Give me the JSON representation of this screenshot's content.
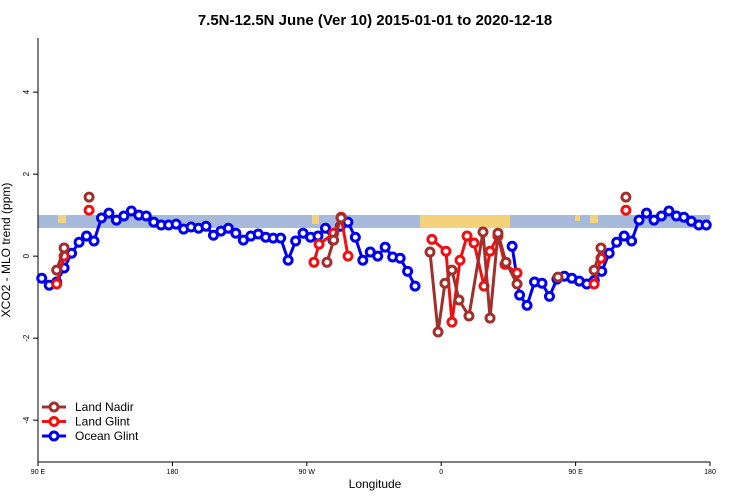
{
  "chart_data": {
    "type": "line",
    "title": "7.5N-12.5N June (Ver 10)   2015-01-01 to 2020-12-18",
    "xlabel": "Longitude",
    "ylabel": "XCO2 - MLO trend (ppm)",
    "xlim": [
      90,
      540
    ],
    "xticks": [
      {
        "value": 90,
        "label": "90 E"
      },
      {
        "value": 180,
        "label": "180"
      },
      {
        "value": 270,
        "label": "90 W"
      },
      {
        "value": 360,
        "label": "0"
      },
      {
        "value": 450,
        "label": "90 E"
      },
      {
        "value": 540,
        "label": "180"
      }
    ],
    "ylim": [
      -5.02,
      5.32
    ],
    "yticks": [
      -4,
      -2,
      0,
      2,
      4
    ],
    "legend": "bottom-left",
    "series": [
      {
        "name": "Land Nadir",
        "color": "#a0302c",
        "x": [
          102.5,
          107.5,
          null,
          124.2,
          null,
          283.5,
          288,
          293,
          null,
          352.5,
          357.9,
          362.5,
          367.2,
          371.9,
          378.6,
          388,
          392.7,
          398,
          403.4,
          410.8,
          null,
          438.2,
          null,
          462.4,
          467,
          null,
          483.7
        ],
        "values": [
          -0.34,
          0.2,
          null,
          1.44,
          null,
          -0.15,
          0.39,
          0.93,
          null,
          0.1,
          -1.85,
          -0.66,
          -0.34,
          -1.07,
          -1.46,
          0.59,
          -1.51,
          0.56,
          -0.15,
          -0.68,
          null,
          -0.51,
          null,
          -0.34,
          0.2,
          null,
          1.44
        ]
      },
      {
        "name": "Land Glint",
        "color": "#ee1111",
        "x": [
          102.5,
          107.5,
          null,
          124.2,
          null,
          274.8,
          278.2,
          288,
          293,
          297.6,
          null,
          353.8,
          363.2,
          367.2,
          372.6,
          377.3,
          382,
          388.7,
          392.7,
          398,
          402.7,
          410.8,
          null,
          462.4,
          467,
          null,
          483.7
        ],
        "values": [
          -0.68,
          0.0,
          null,
          1.12,
          null,
          -0.15,
          0.29,
          0.56,
          0.95,
          0.0,
          null,
          0.41,
          0.12,
          -1.61,
          -0.1,
          0.49,
          0.32,
          -0.73,
          0.12,
          0.49,
          -0.2,
          -0.41,
          null,
          -0.68,
          -0.05,
          null,
          1.12
        ]
      },
      {
        "name": "Ocean Glint",
        "color": "#0000ee",
        "x": [
          92.5,
          97.5,
          102.5,
          107.5,
          112.5,
          117.5,
          122.5,
          127.5,
          132.5,
          137.5,
          142.5,
          147.5,
          152.5,
          157.5,
          162.5,
          167.5,
          172.5,
          177.5,
          182.5,
          187.5,
          192.5,
          197.5,
          202.5,
          207.5,
          212.5,
          217.5,
          222.5,
          227.5,
          232.5,
          237.5,
          242.5,
          247.5,
          252.5,
          257.5,
          262.5,
          267.5,
          272.5,
          277.5,
          282.5,
          287.5,
          292.5,
          297.5,
          302.5,
          307.5,
          312.5,
          317.5,
          322.5,
          327.5,
          332.5,
          337.5,
          342.5,
          null,
          407.5,
          412.5,
          417.5,
          422.5,
          427.5,
          432.5,
          437.5,
          442.5,
          447.5,
          452.5,
          457.5,
          462.5,
          467.5,
          472.5,
          477.5,
          482.5,
          487.5,
          492.5,
          497.5,
          502.5,
          507.5,
          512.5,
          517.5,
          522.5,
          527.5,
          532.5,
          537.5
        ],
        "values": [
          -0.54,
          -0.71,
          -0.63,
          -0.29,
          0.07,
          0.34,
          0.49,
          0.37,
          0.93,
          1.05,
          0.88,
          0.98,
          1.1,
          1.0,
          0.98,
          0.83,
          0.76,
          0.76,
          0.78,
          0.66,
          0.71,
          0.68,
          0.73,
          0.51,
          0.61,
          0.68,
          0.56,
          0.39,
          0.49,
          0.54,
          0.46,
          0.44,
          0.44,
          -0.1,
          0.37,
          0.56,
          0.46,
          0.49,
          0.68,
          0.39,
          0.73,
          0.83,
          0.46,
          -0.1,
          0.1,
          0,
          0.22,
          -0.02,
          -0.05,
          -0.37,
          -0.73,
          null,
          0.24,
          -0.95,
          -1.2,
          -0.63,
          -0.66,
          -0.98,
          -0.56,
          -0.49,
          -0.54,
          -0.61,
          -0.68,
          -0.59,
          -0.37,
          0.07,
          0.34,
          0.49,
          0.37,
          0.88,
          1.05,
          0.88,
          0.98,
          1.1,
          0.98,
          0.95,
          0.85,
          0.76,
          0.76
        ]
      }
    ]
  }
}
